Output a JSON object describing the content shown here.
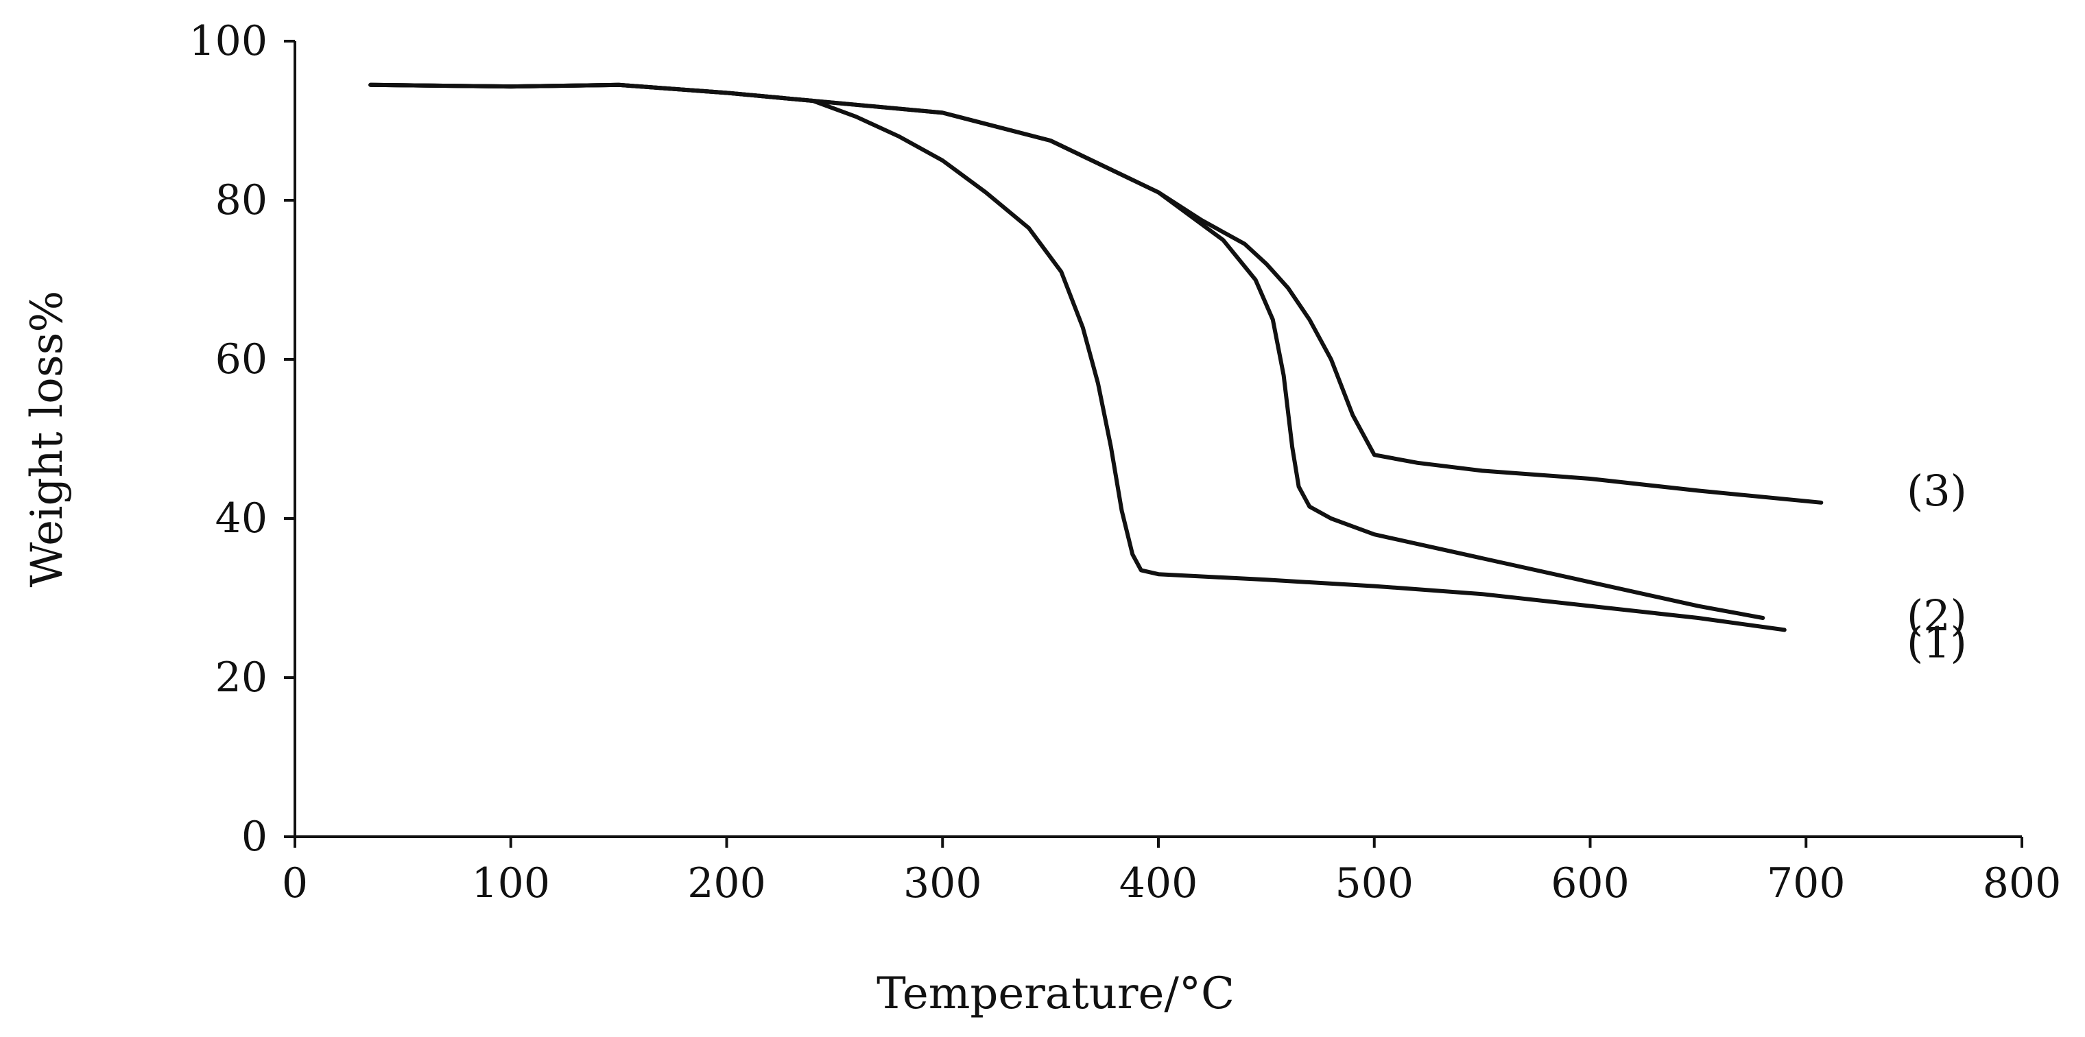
{
  "chart_data": {
    "type": "line",
    "title": "",
    "xlabel": "Temperature/°C",
    "ylabel": "Weight loss%",
    "xlim": [
      0,
      800
    ],
    "ylim": [
      0,
      100
    ],
    "x_ticks": [
      0,
      100,
      200,
      300,
      400,
      500,
      600,
      700,
      800
    ],
    "x_tick_labels": [
      "0",
      "100",
      "200",
      "300",
      "400",
      "500",
      "600",
      "700",
      "800"
    ],
    "y_ticks": [
      0,
      20,
      40,
      60,
      80,
      100
    ],
    "y_tick_labels": [
      "0",
      "20",
      "40",
      "60",
      "80",
      "100"
    ],
    "grid": false,
    "series": [
      {
        "name": "(1)",
        "x": [
          35,
          100,
          150,
          200,
          240,
          260,
          280,
          300,
          320,
          340,
          355,
          365,
          372,
          378,
          383,
          388,
          392,
          400,
          450,
          500,
          550,
          600,
          650,
          690
        ],
        "values": [
          94.5,
          94.3,
          94.5,
          93.5,
          92.5,
          90.5,
          88.0,
          85.0,
          81.0,
          76.5,
          71.0,
          64.0,
          57.0,
          49.0,
          41.0,
          35.5,
          33.5,
          33.0,
          32.3,
          31.5,
          30.5,
          29.0,
          27.5,
          26.0
        ]
      },
      {
        "name": "(2)",
        "x": [
          35,
          100,
          150,
          200,
          240,
          300,
          350,
          400,
          430,
          445,
          453,
          458,
          462,
          465,
          470,
          480,
          500,
          550,
          600,
          650,
          680
        ],
        "values": [
          94.5,
          94.3,
          94.5,
          93.5,
          92.5,
          91.0,
          87.5,
          81.0,
          75.0,
          70.0,
          65.0,
          58.0,
          49.0,
          44.0,
          41.5,
          40.0,
          38.0,
          35.0,
          32.0,
          29.0,
          27.5
        ]
      },
      {
        "name": "(3)",
        "x": [
          35,
          100,
          150,
          200,
          240,
          300,
          350,
          400,
          420,
          440,
          450,
          460,
          470,
          480,
          490,
          500,
          520,
          550,
          600,
          650,
          707
        ],
        "values": [
          94.5,
          94.3,
          94.5,
          93.5,
          92.5,
          91.0,
          87.5,
          81.0,
          77.5,
          74.5,
          72.0,
          69.0,
          65.0,
          60.0,
          53.0,
          48.0,
          47.0,
          46.0,
          45.0,
          43.5,
          42.0
        ]
      }
    ]
  }
}
